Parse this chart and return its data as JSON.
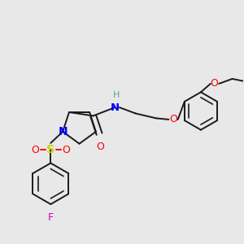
{
  "background_color": "#e8e8e8",
  "bond_color": "#1a1a1a",
  "N_color": "#0000ff",
  "O_color": "#ff0000",
  "S_color": "#cccc00",
  "F_color": "#cc00cc",
  "H_color": "#5f9ea0",
  "figsize": [
    3.0,
    3.0
  ],
  "dpi": 100,
  "xlim": [
    0,
    10
  ],
  "ylim": [
    0,
    10
  ]
}
